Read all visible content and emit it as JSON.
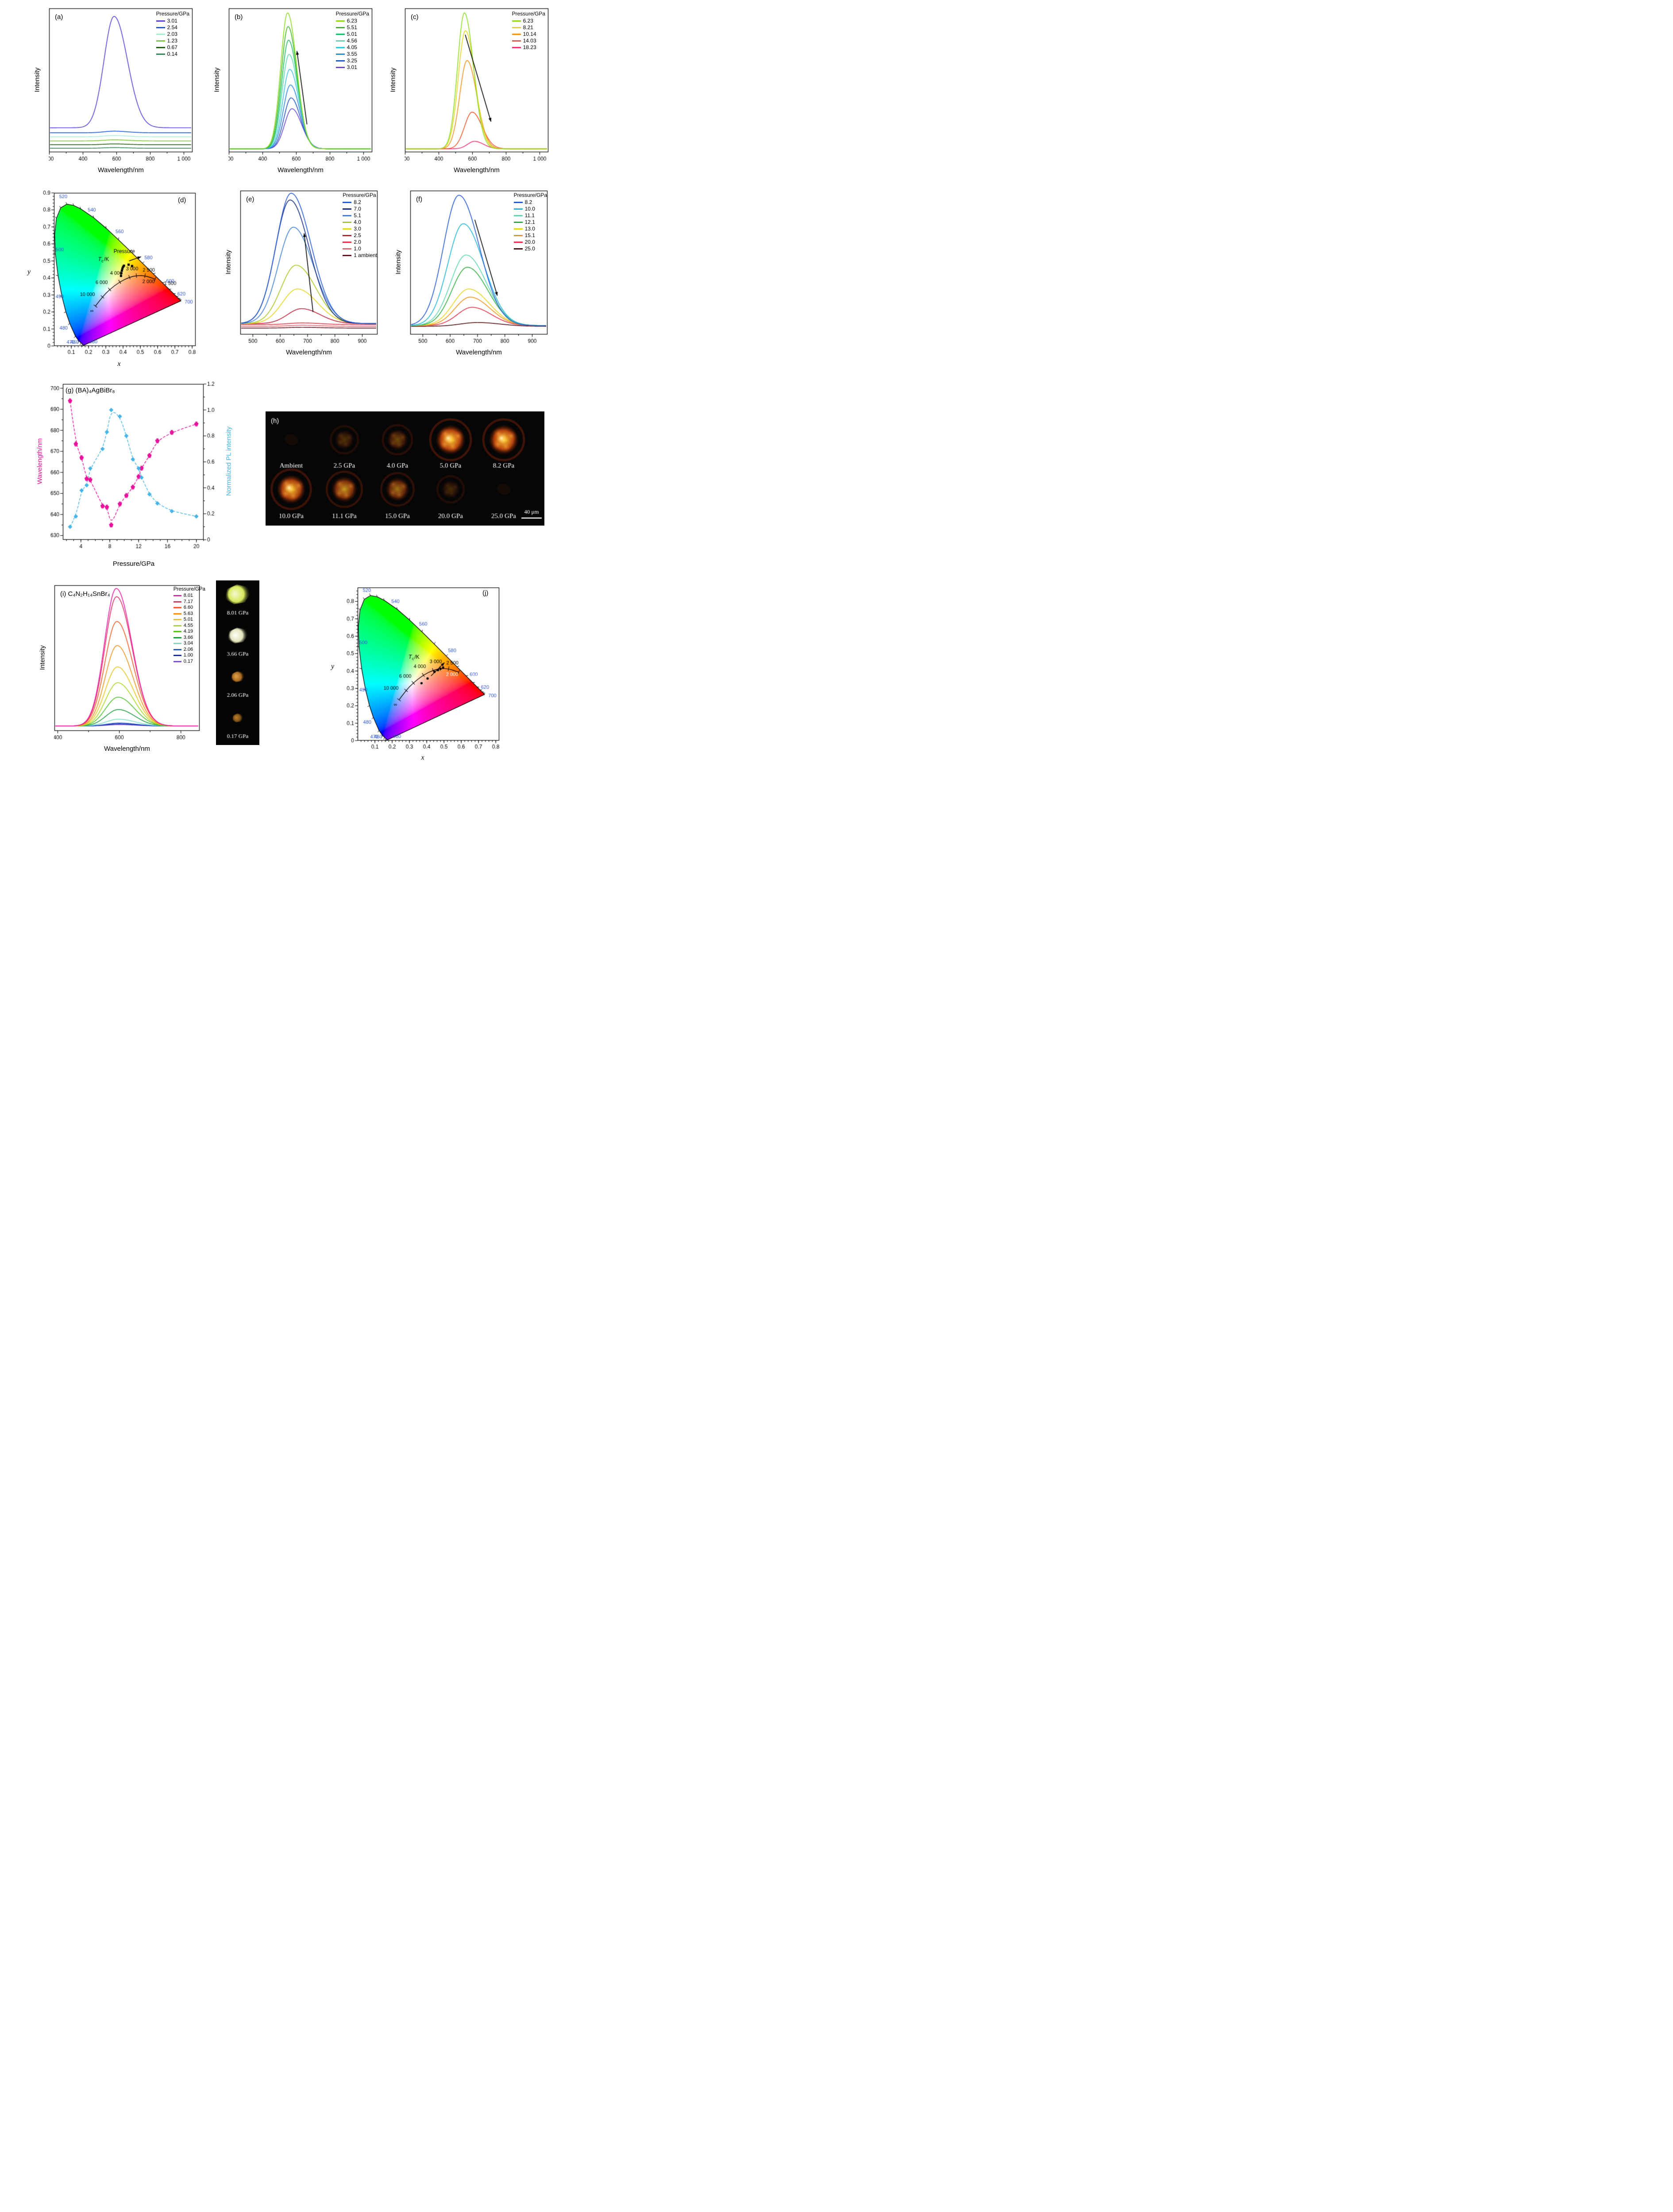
{
  "page": {
    "background": "#ffffff"
  },
  "chart_data": [
    {
      "id": "a",
      "type": "line",
      "letter": "(a)",
      "xlabel": "Wavelength/nm",
      "ylabel": "Intensity",
      "legend_title": "Pressure/GPa",
      "x_range": [
        200,
        1050
      ],
      "x_ticks": [
        200,
        400,
        600,
        800,
        1000
      ],
      "x_tick_labels": [
        "200",
        "400",
        "600",
        "800",
        "1 000"
      ],
      "x_minor": [
        300,
        500,
        700,
        900
      ],
      "series": [
        {
          "label": "3.01",
          "color": "#5b3fd8",
          "center": 585,
          "width": 85,
          "amp": 0.82,
          "base": 0.175
        },
        {
          "label": "2.54",
          "color": "#1c57dd",
          "center": 585,
          "width": 85,
          "amp": 0.012,
          "base": 0.138
        },
        {
          "label": "2.03",
          "color": "#a5efcf",
          "center": 585,
          "width": 85,
          "amp": 0.01,
          "base": 0.108
        },
        {
          "label": "1.23",
          "color": "#7cc832",
          "center": 585,
          "width": 85,
          "amp": 0.008,
          "base": 0.078
        },
        {
          "label": "0.67",
          "color": "#24610f",
          "center": 585,
          "width": 85,
          "amp": 0.006,
          "base": 0.05
        },
        {
          "label": "0.14",
          "color": "#2e8b57",
          "center": 585,
          "width": 85,
          "amp": 0.005,
          "base": 0.024
        }
      ]
    },
    {
      "id": "b",
      "type": "line",
      "letter": "(b)",
      "xlabel": "Wavelength/nm",
      "ylabel": "Intensity",
      "legend_title": "Pressure/GPa",
      "x_range": [
        200,
        1050
      ],
      "x_ticks": [
        200,
        400,
        600,
        800,
        1000
      ],
      "x_tick_labels": [
        "200",
        "400",
        "600",
        "800",
        "1 000"
      ],
      "x_minor": [
        300,
        500,
        700,
        900
      ],
      "arrow": {
        "from": [
          0.545,
          0.2
        ],
        "to": [
          0.475,
          0.74
        ]
      },
      "series": [
        {
          "label": "6.23",
          "color": "#8cdc20",
          "center": 548,
          "width": 58,
          "amp": 1.0,
          "base": 0.02
        },
        {
          "label": "5.51",
          "color": "#3db829",
          "center": 551,
          "width": 58,
          "amp": 0.9,
          "base": 0.02
        },
        {
          "label": "5.01",
          "color": "#1ebd62",
          "center": 554,
          "width": 58,
          "amp": 0.8,
          "base": 0.02
        },
        {
          "label": "4.56",
          "color": "#5ad8ae",
          "center": 557,
          "width": 59,
          "amp": 0.695,
          "base": 0.02
        },
        {
          "label": "4.05",
          "color": "#3cc3e0",
          "center": 561,
          "width": 59,
          "amp": 0.585,
          "base": 0.02
        },
        {
          "label": "3.55",
          "color": "#2e86e0",
          "center": 565,
          "width": 60,
          "amp": 0.47,
          "base": 0.02
        },
        {
          "label": "3.25",
          "color": "#2356c9",
          "center": 569,
          "width": 60,
          "amp": 0.375,
          "base": 0.02
        },
        {
          "label": "3.01",
          "color": "#6847d8",
          "center": 574,
          "width": 62,
          "amp": 0.295,
          "base": 0.02
        }
      ]
    },
    {
      "id": "c",
      "type": "line",
      "letter": "(c)",
      "xlabel": "Wavelength/nm",
      "ylabel": "Intensity",
      "legend_title": "Pressure/GPa",
      "x_range": [
        200,
        1050
      ],
      "x_ticks": [
        200,
        400,
        600,
        800,
        1000
      ],
      "x_tick_labels": [
        "200",
        "400",
        "600",
        "800",
        "1 000"
      ],
      "x_minor": [
        300,
        500,
        700,
        900
      ],
      "arrow": {
        "from": [
          0.42,
          0.86
        ],
        "to": [
          0.6,
          0.22
        ]
      },
      "series": [
        {
          "label": "6.23",
          "color": "#8cdc20",
          "center": 552,
          "width": 58,
          "amp": 1.0,
          "base": 0.02
        },
        {
          "label": "8.21",
          "color": "#e5d51c",
          "center": 558,
          "width": 60,
          "amp": 0.87,
          "base": 0.02
        },
        {
          "label": "10.14",
          "color": "#ef941c",
          "center": 568,
          "width": 62,
          "amp": 0.65,
          "base": 0.02
        },
        {
          "label": "14.03",
          "color": "#f4562a",
          "center": 598,
          "width": 64,
          "amp": 0.27,
          "base": 0.02
        },
        {
          "label": "18.23",
          "color": "#f4336e",
          "center": 612,
          "width": 58,
          "amp": 0.055,
          "base": 0.02
        }
      ]
    },
    {
      "id": "d",
      "type": "cie",
      "letter": "(d)",
      "xlabel": "x",
      "ylabel": "y",
      "x_max": 0.82,
      "y_max": 0.9,
      "x_ticks": [
        0.1,
        0.2,
        0.3,
        0.4,
        0.5,
        0.6,
        0.7,
        0.8
      ],
      "y_ticks": [
        0,
        0.1,
        0.2,
        0.3,
        0.4,
        0.5,
        0.6,
        0.7,
        0.8,
        0.9
      ],
      "wavelength_labels": [
        380,
        460,
        470,
        480,
        490,
        500,
        520,
        540,
        560,
        580,
        600,
        620,
        700
      ],
      "planck_labels": [
        "∞",
        "10 000",
        "6 000",
        "4 000",
        "3 000",
        "2 500",
        "2 000",
        "1 500"
      ],
      "tc_label": {
        "symbol": "T",
        "sub": "c",
        "suffix": "/K"
      },
      "tc_pos": [
        0.255,
        0.5
      ],
      "pressure_label": "Pressure",
      "pressure_pos": [
        0.345,
        0.545
      ],
      "arrow": {
        "from": [
          0.435,
          0.5
        ],
        "to": [
          0.505,
          0.525
        ]
      },
      "marker": "square",
      "points": [
        [
          0.388,
          0.412
        ],
        [
          0.39,
          0.428
        ],
        [
          0.393,
          0.443
        ],
        [
          0.396,
          0.455
        ],
        [
          0.4,
          0.465
        ],
        [
          0.405,
          0.472
        ],
        [
          0.432,
          0.478
        ],
        [
          0.452,
          0.47
        ]
      ]
    },
    {
      "id": "e",
      "type": "line",
      "letter": "(e)",
      "xlabel": "Wavelength/nm",
      "ylabel": "Intensity",
      "legend_title": "Pressure/GPa",
      "x_range": [
        455,
        955
      ],
      "x_ticks": [
        500,
        600,
        700,
        800,
        900
      ],
      "x_tick_labels": [
        "500",
        "600",
        "700",
        "800",
        "900"
      ],
      "x_minor": [
        550,
        650,
        750,
        850
      ],
      "arrow": {
        "from": [
          0.53,
          0.16
        ],
        "to": [
          0.465,
          0.74
        ]
      },
      "series": [
        {
          "label": "8.2",
          "color": "#2458d8",
          "center": 640,
          "width": 78,
          "amp": 0.96,
          "base": 0.075
        },
        {
          "label": "7.0",
          "color": "#14297e",
          "center": 636,
          "width": 76,
          "amp": 0.91,
          "base": 0.075
        },
        {
          "label": "5.1",
          "color": "#3f7fd9",
          "center": 648,
          "width": 78,
          "amp": 0.71,
          "base": 0.075
        },
        {
          "label": "4.0",
          "color": "#a6c81e",
          "center": 658,
          "width": 78,
          "amp": 0.43,
          "base": 0.075
        },
        {
          "label": "3.0",
          "color": "#e6d51c",
          "center": 663,
          "width": 78,
          "amp": 0.255,
          "base": 0.075
        },
        {
          "label": "2.5",
          "color": "#c01f38",
          "center": 678,
          "width": 72,
          "amp": 0.11,
          "base": 0.075
        },
        {
          "label": "2.0",
          "color": "#e23448",
          "center": 680,
          "width": 70,
          "amp": 0.012,
          "base": 0.068
        },
        {
          "label": "1.0",
          "color": "#e8606a",
          "center": 680,
          "width": 70,
          "amp": 0.008,
          "base": 0.055
        },
        {
          "label": "1 ambient",
          "color": "#5e1620",
          "center": 680,
          "width": 70,
          "amp": 0.006,
          "base": 0.042
        }
      ]
    },
    {
      "id": "f",
      "type": "line",
      "letter": "(f)",
      "xlabel": "Wavelength/nm",
      "ylabel": "Intensity",
      "legend_title": "Pressure/GPa",
      "x_range": [
        455,
        955
      ],
      "x_ticks": [
        500,
        600,
        700,
        800,
        900
      ],
      "x_tick_labels": [
        "500",
        "600",
        "700",
        "800",
        "900"
      ],
      "x_minor": [
        550,
        650,
        750,
        850
      ],
      "arrow": {
        "from": [
          0.47,
          0.84
        ],
        "to": [
          0.635,
          0.28
        ]
      },
      "series": [
        {
          "label": "8.2",
          "color": "#2458d8",
          "center": 632,
          "width": 80,
          "amp": 0.96,
          "base": 0.06
        },
        {
          "label": "10.0",
          "color": "#1fb6d8",
          "center": 648,
          "width": 80,
          "amp": 0.75,
          "base": 0.06
        },
        {
          "label": "11.1",
          "color": "#5cd8a8",
          "center": 658,
          "width": 80,
          "amp": 0.52,
          "base": 0.06
        },
        {
          "label": "12.1",
          "color": "#2fae3f",
          "center": 663,
          "width": 80,
          "amp": 0.43,
          "base": 0.06
        },
        {
          "label": "13.0",
          "color": "#e6d51c",
          "center": 668,
          "width": 80,
          "amp": 0.27,
          "base": 0.06
        },
        {
          "label": "15.1",
          "color": "#ef941c",
          "center": 673,
          "width": 78,
          "amp": 0.21,
          "base": 0.06
        },
        {
          "label": "20.0",
          "color": "#e8304a",
          "center": 680,
          "width": 76,
          "amp": 0.135,
          "base": 0.06
        },
        {
          "label": "25.0",
          "color": "#4a1018",
          "center": 700,
          "width": 88,
          "amp": 0.028,
          "base": 0.055
        }
      ]
    },
    {
      "id": "g",
      "type": "dual",
      "letter": "(g)",
      "title": "(BA)₄AgBiBr₈",
      "xlabel": "Pressure/GPa",
      "left_ylabel": "Wavelength/nm",
      "left_color": "#e8119b",
      "right_ylabel": "Normalized PL intensity",
      "right_color": "#45b4e6",
      "x_range": [
        1.5,
        21
      ],
      "x_ticks": [
        4,
        8,
        12,
        16,
        20
      ],
      "left_range": [
        628,
        702
      ],
      "left_ticks": [
        630,
        640,
        650,
        660,
        670,
        680,
        690,
        700
      ],
      "right_range": [
        0,
        1.2
      ],
      "right_ticks": [
        0,
        0.2,
        0.4,
        0.6,
        0.8,
        1.0,
        1.2
      ],
      "right_tick_labels": [
        "0",
        "0.2",
        "0.4",
        "0.6",
        "0.8",
        "1.0",
        "1.2"
      ],
      "wavelength_points": [
        [
          2.5,
          694
        ],
        [
          3.3,
          673.5
        ],
        [
          4.1,
          667
        ],
        [
          4.8,
          657
        ],
        [
          5.3,
          656.5
        ],
        [
          7.0,
          644
        ],
        [
          7.6,
          643.5
        ],
        [
          8.2,
          635
        ],
        [
          9.4,
          645
        ],
        [
          10.3,
          649
        ],
        [
          11.2,
          653
        ],
        [
          12.0,
          658
        ],
        [
          12.4,
          662
        ],
        [
          13.5,
          668
        ],
        [
          14.6,
          675
        ],
        [
          16.6,
          679
        ],
        [
          20.0,
          683
        ]
      ],
      "intensity_points": [
        [
          2.5,
          0.1
        ],
        [
          3.3,
          0.18
        ],
        [
          4.1,
          0.38
        ],
        [
          4.8,
          0.42
        ],
        [
          5.3,
          0.55
        ],
        [
          7.0,
          0.7
        ],
        [
          7.6,
          0.83
        ],
        [
          8.2,
          1.0
        ],
        [
          9.4,
          0.95
        ],
        [
          10.3,
          0.8
        ],
        [
          11.2,
          0.62
        ],
        [
          12.0,
          0.55
        ],
        [
          12.4,
          0.48
        ],
        [
          13.5,
          0.35
        ],
        [
          14.6,
          0.28
        ],
        [
          16.6,
          0.22
        ],
        [
          20.0,
          0.18
        ]
      ]
    },
    {
      "id": "h",
      "type": "micro",
      "letter": "(h)",
      "scale_bar": "40 μm",
      "rows": [
        {
          "labels": [
            "Ambient",
            "2.5 GPa",
            "4.0 GPa",
            "5.0 GPa",
            "8.2 GPa"
          ],
          "brightness": [
            0.05,
            0.2,
            0.32,
            1.0,
            1.0
          ]
        },
        {
          "labels": [
            "10.0 GPa",
            "11.1 GPa",
            "15.0 GPa",
            "20.0 GPa",
            "25.0 GPa"
          ],
          "brightness": [
            0.92,
            0.68,
            0.52,
            0.15,
            0.05
          ]
        }
      ]
    },
    {
      "id": "i",
      "type": "line",
      "letter": "(i)",
      "title": "C₄N₂H₁₄SnBr₄",
      "xlabel": "Wavelength/nm",
      "ylabel": "Intensity",
      "legend_title": "Pressure/GPa",
      "x_range": [
        390,
        860
      ],
      "x_ticks": [
        400,
        600,
        800
      ],
      "x_tick_labels": [
        "400",
        "600",
        "800"
      ],
      "x_minor": [
        500,
        700
      ],
      "series": [
        {
          "label": "8.01",
          "color": "#f21ba2",
          "center": 590,
          "width": 54,
          "amp": 1.0,
          "base": 0.03
        },
        {
          "label": "7.17",
          "color": "#e62e62",
          "center": 591,
          "width": 54,
          "amp": 0.94,
          "base": 0.03
        },
        {
          "label": "6.60",
          "color": "#f25c28",
          "center": 592,
          "width": 55,
          "amp": 0.76,
          "base": 0.03
        },
        {
          "label": "5.63",
          "color": "#ef921c",
          "center": 593,
          "width": 55,
          "amp": 0.585,
          "base": 0.03
        },
        {
          "label": "5.01",
          "color": "#e6c61c",
          "center": 594,
          "width": 56,
          "amp": 0.43,
          "base": 0.03
        },
        {
          "label": "4.55",
          "color": "#a8d822",
          "center": 595,
          "width": 56,
          "amp": 0.315,
          "base": 0.03
        },
        {
          "label": "4.19",
          "color": "#52c22e",
          "center": 596,
          "width": 57,
          "amp": 0.21,
          "base": 0.03
        },
        {
          "label": "3.66",
          "color": "#1f9e3f",
          "center": 597,
          "width": 57,
          "amp": 0.12,
          "base": 0.03
        },
        {
          "label": "3.04",
          "color": "#79dfc0",
          "center": 598,
          "width": 58,
          "amp": 0.05,
          "base": 0.03
        },
        {
          "label": "2.06",
          "color": "#2458d8",
          "center": 600,
          "width": 58,
          "amp": 0.022,
          "base": 0.03
        },
        {
          "label": "1.00",
          "color": "#1c2f9e",
          "center": 600,
          "width": 58,
          "amp": 0.016,
          "base": 0.03
        },
        {
          "label": "0.17",
          "color": "#7a52d8",
          "center": 600,
          "width": 58,
          "amp": 0.01,
          "base": 0.03
        }
      ],
      "photos": [
        {
          "label": "8.01 GPa",
          "color": "#d8e85c",
          "glow": "#f2f7c4",
          "size": 1.0
        },
        {
          "label": "3.66 GPa",
          "color": "#e3e4bd",
          "glow": "#fbfbef",
          "size": 0.8
        },
        {
          "label": "2.06 GPa",
          "color": "#a86a20",
          "glow": "#d89a40",
          "size": 0.55
        },
        {
          "label": "0.17 GPa",
          "color": "#7a4f16",
          "glow": "#b07828",
          "size": 0.45
        }
      ]
    },
    {
      "id": "j",
      "type": "cie",
      "letter": "(j)",
      "xlabel": "x",
      "ylabel": "y",
      "x_max": 0.82,
      "y_max": 0.88,
      "x_ticks": [
        0.1,
        0.2,
        0.3,
        0.4,
        0.5,
        0.6,
        0.7,
        0.8
      ],
      "y_ticks": [
        0,
        0.1,
        0.2,
        0.3,
        0.4,
        0.5,
        0.6,
        0.7,
        0.8
      ],
      "wavelength_labels": [
        380,
        460,
        470,
        480,
        490,
        500,
        520,
        540,
        560,
        580,
        600,
        620,
        700
      ],
      "planck_labels": [
        "∞",
        "10 000",
        "6 000",
        "4 000",
        "3 000",
        "2 500",
        "2 000",
        "1 500"
      ],
      "tc_label": {
        "symbol": "T",
        "sub": "c",
        "suffix": "/K"
      },
      "tc_pos": [
        0.295,
        0.47
      ],
      "lower_label_color": "#ffffff",
      "marker": "dot",
      "points": [
        [
          0.37,
          0.33
        ],
        [
          0.405,
          0.357
        ],
        [
          0.445,
          0.395
        ],
        [
          0.465,
          0.405
        ],
        [
          0.48,
          0.413
        ],
        [
          0.495,
          0.42
        ]
      ],
      "arrow": {
        "from": [
          0.425,
          0.372
        ],
        "to": [
          0.503,
          0.448
        ]
      }
    }
  ]
}
